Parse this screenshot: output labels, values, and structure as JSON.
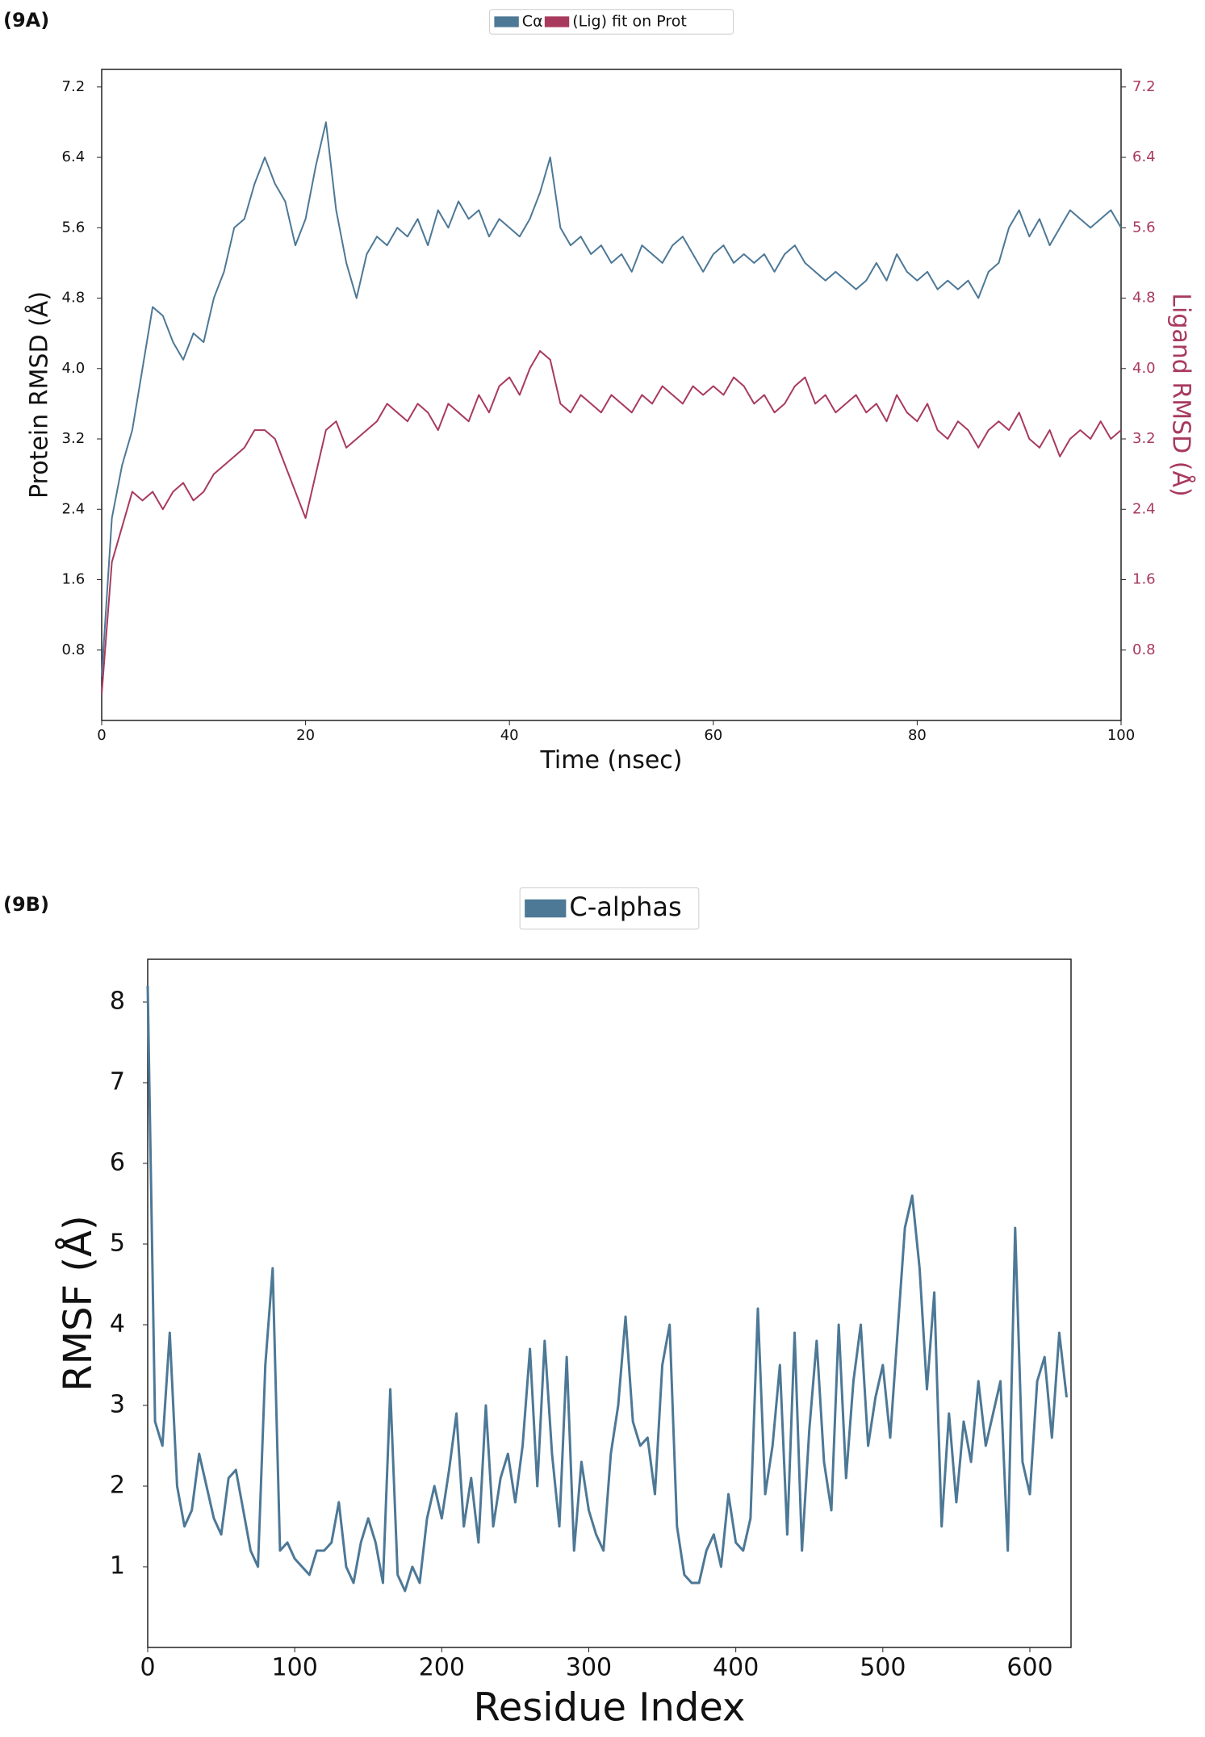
{
  "chart_data": [
    {
      "type": "line",
      "panel_label": "(9A)",
      "xlabel": "Time (nsec)",
      "ylabel": "Protein RMSD (Å)",
      "y2label": "Ligand RMSD (Å)",
      "legend": "upper center",
      "xlim": [
        0,
        100
      ],
      "xticks": [
        0,
        20,
        40,
        60,
        80,
        100
      ],
      "ylim": [
        0,
        7.4
      ],
      "yticks": [
        0.8,
        1.6,
        2.4,
        3.2,
        {
          "value": 4,
          "label": "4.0"
        },
        4.8,
        5.6,
        6.4,
        7.2
      ],
      "y2lim": [
        0,
        7.4
      ],
      "y2ticks": [
        0.8,
        1.6,
        2.4,
        3.2,
        {
          "value": 4,
          "label": "4.0"
        },
        4.8,
        5.6,
        6.4,
        7.2
      ],
      "x": [
        0,
        1,
        2,
        3,
        4,
        5,
        6,
        7,
        8,
        9,
        10,
        11,
        12,
        13,
        14,
        15,
        16,
        17,
        18,
        19,
        20,
        21,
        22,
        23,
        24,
        25,
        26,
        27,
        28,
        29,
        30,
        31,
        32,
        33,
        34,
        35,
        36,
        37,
        38,
        39,
        40,
        41,
        42,
        43,
        44,
        45,
        46,
        47,
        48,
        49,
        50,
        51,
        52,
        53,
        54,
        55,
        56,
        57,
        58,
        59,
        60,
        61,
        62,
        63,
        64,
        65,
        66,
        67,
        68,
        69,
        70,
        71,
        72,
        73,
        74,
        75,
        76,
        77,
        78,
        79,
        80,
        81,
        82,
        83,
        84,
        85,
        86,
        87,
        88,
        89,
        90,
        91,
        92,
        93,
        94,
        95,
        96,
        97,
        98,
        99,
        100
      ],
      "series": [
        {
          "name": "Cα",
          "color": "#4d7896",
          "values": [
            0.5,
            2.3,
            2.9,
            3.3,
            4.0,
            4.7,
            4.6,
            4.3,
            4.1,
            4.4,
            4.3,
            4.8,
            5.1,
            5.6,
            5.7,
            6.1,
            6.4,
            6.1,
            5.9,
            5.4,
            5.7,
            6.3,
            6.8,
            5.8,
            5.2,
            4.8,
            5.3,
            5.5,
            5.4,
            5.6,
            5.5,
            5.7,
            5.4,
            5.8,
            5.6,
            5.9,
            5.7,
            5.8,
            5.5,
            5.7,
            5.6,
            5.5,
            5.7,
            6.0,
            6.4,
            5.6,
            5.4,
            5.5,
            5.3,
            5.4,
            5.2,
            5.3,
            5.1,
            5.4,
            5.3,
            5.2,
            5.4,
            5.5,
            5.3,
            5.1,
            5.3,
            5.4,
            5.2,
            5.3,
            5.2,
            5.3,
            5.1,
            5.3,
            5.4,
            5.2,
            5.1,
            5.0,
            5.1,
            5.0,
            4.9,
            5.0,
            5.2,
            5.0,
            5.3,
            5.1,
            5.0,
            5.1,
            4.9,
            5.0,
            4.9,
            5.0,
            4.8,
            5.1,
            5.2,
            5.6,
            5.8,
            5.5,
            5.7,
            5.4,
            5.6,
            5.8,
            5.7,
            5.6,
            5.7,
            5.8,
            5.6
          ]
        },
        {
          "name": "(Lig) fit on Prot",
          "color": "#a83a5e",
          "axis": "y2",
          "values": [
            0.3,
            1.8,
            2.2,
            2.6,
            2.5,
            2.6,
            2.4,
            2.6,
            2.7,
            2.5,
            2.6,
            2.8,
            2.9,
            3.0,
            3.1,
            3.3,
            3.3,
            3.2,
            2.9,
            2.6,
            2.3,
            2.8,
            3.3,
            3.4,
            3.1,
            3.2,
            3.3,
            3.4,
            3.6,
            3.5,
            3.4,
            3.6,
            3.5,
            3.3,
            3.6,
            3.5,
            3.4,
            3.7,
            3.5,
            3.8,
            3.9,
            3.7,
            4.0,
            4.2,
            4.1,
            3.6,
            3.5,
            3.7,
            3.6,
            3.5,
            3.7,
            3.6,
            3.5,
            3.7,
            3.6,
            3.8,
            3.7,
            3.6,
            3.8,
            3.7,
            3.8,
            3.7,
            3.9,
            3.8,
            3.6,
            3.7,
            3.5,
            3.6,
            3.8,
            3.9,
            3.6,
            3.7,
            3.5,
            3.6,
            3.7,
            3.5,
            3.6,
            3.4,
            3.7,
            3.5,
            3.4,
            3.6,
            3.3,
            3.2,
            3.4,
            3.3,
            3.1,
            3.3,
            3.4,
            3.3,
            3.5,
            3.2,
            3.1,
            3.3,
            3.0,
            3.2,
            3.3,
            3.2,
            3.4,
            3.2,
            3.3
          ]
        }
      ]
    },
    {
      "type": "line",
      "panel_label": "(9B)",
      "xlabel": "Residue Index",
      "ylabel": "RMSF (Å)",
      "legend": "upper center",
      "xlim": [
        0,
        628
      ],
      "xticks": [
        0,
        100,
        200,
        300,
        400,
        500,
        600
      ],
      "ylim": [
        0,
        8.53
      ],
      "yticks": [
        1,
        2,
        3,
        4,
        5,
        6,
        7,
        8
      ],
      "x": [
        0,
        5,
        10,
        15,
        20,
        25,
        30,
        35,
        40,
        45,
        50,
        55,
        60,
        65,
        70,
        75,
        80,
        85,
        90,
        95,
        100,
        105,
        110,
        115,
        120,
        125,
        130,
        135,
        140,
        145,
        150,
        155,
        160,
        165,
        170,
        175,
        180,
        185,
        190,
        195,
        200,
        205,
        210,
        215,
        220,
        225,
        230,
        235,
        240,
        245,
        250,
        255,
        260,
        265,
        270,
        275,
        280,
        285,
        290,
        295,
        300,
        305,
        310,
        315,
        320,
        325,
        330,
        335,
        340,
        345,
        350,
        355,
        360,
        365,
        370,
        375,
        380,
        385,
        390,
        395,
        400,
        405,
        410,
        415,
        420,
        425,
        430,
        435,
        440,
        445,
        450,
        455,
        460,
        465,
        470,
        475,
        480,
        485,
        490,
        495,
        500,
        505,
        510,
        515,
        520,
        525,
        530,
        535,
        540,
        545,
        550,
        555,
        560,
        565,
        570,
        575,
        580,
        585,
        590,
        595,
        600,
        605,
        610,
        615,
        620,
        625
      ],
      "series": [
        {
          "name": "C-alphas",
          "color": "#4d7896",
          "values": [
            8.2,
            2.8,
            2.5,
            3.9,
            2.0,
            1.5,
            1.7,
            2.4,
            2.0,
            1.6,
            1.4,
            2.1,
            2.2,
            1.7,
            1.2,
            1.0,
            3.5,
            4.7,
            1.2,
            1.3,
            1.1,
            1.0,
            0.9,
            1.2,
            1.2,
            1.3,
            1.8,
            1.0,
            0.8,
            1.3,
            1.6,
            1.3,
            0.8,
            3.2,
            0.9,
            0.7,
            1.0,
            0.8,
            1.6,
            2.0,
            1.6,
            2.2,
            2.9,
            1.5,
            2.1,
            1.3,
            3.0,
            1.5,
            2.1,
            2.4,
            1.8,
            2.5,
            3.7,
            2.0,
            3.8,
            2.4,
            1.5,
            3.6,
            1.2,
            2.3,
            1.7,
            1.4,
            1.2,
            2.4,
            3.0,
            4.1,
            2.8,
            2.5,
            2.6,
            1.9,
            3.5,
            4.0,
            1.5,
            0.9,
            0.8,
            0.8,
            1.2,
            1.4,
            1.0,
            1.9,
            1.3,
            1.2,
            1.6,
            4.2,
            1.9,
            2.5,
            3.5,
            1.4,
            3.9,
            1.2,
            2.7,
            3.8,
            2.3,
            1.7,
            4.0,
            2.1,
            3.3,
            4.0,
            2.5,
            3.1,
            3.5,
            2.6,
            3.9,
            5.2,
            5.6,
            4.7,
            3.2,
            4.4,
            1.5,
            2.9,
            1.8,
            2.8,
            2.3,
            3.3,
            2.5,
            2.9,
            3.3,
            1.2,
            5.2,
            2.3,
            1.9,
            3.3,
            3.6,
            2.6,
            3.9,
            3.1
          ]
        }
      ]
    }
  ]
}
